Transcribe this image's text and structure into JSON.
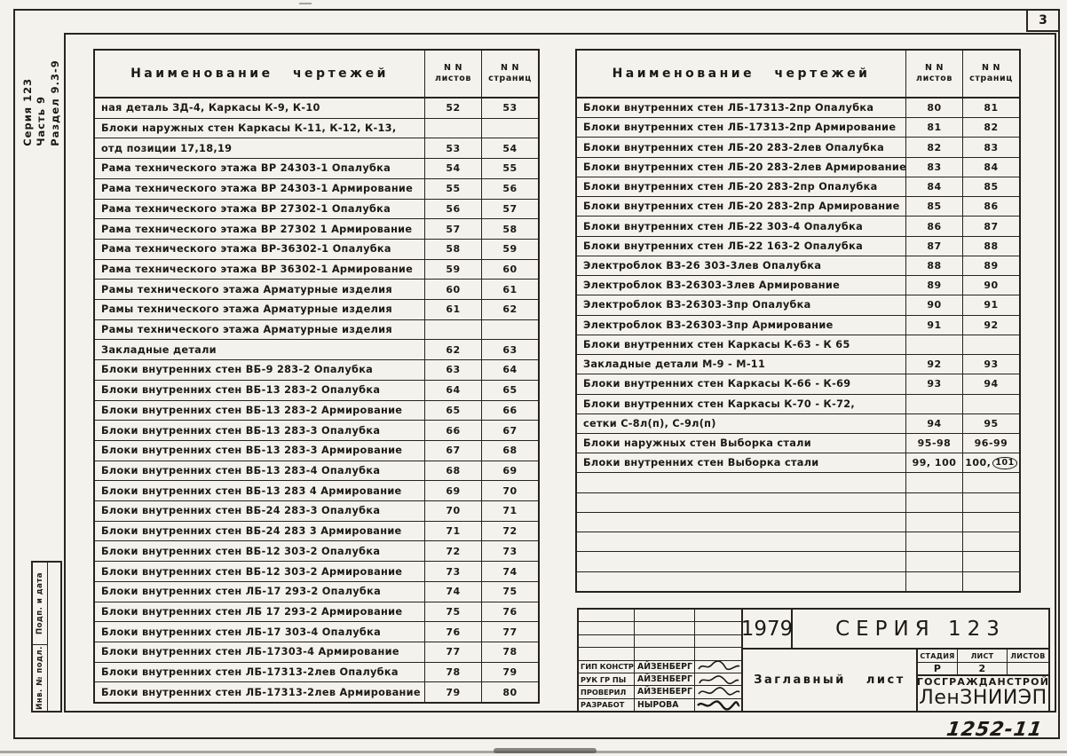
{
  "page": {
    "page_number": "3",
    "side_label": {
      "line1": "Серия 123",
      "line2": "Часть 9",
      "line3": "Раздел 9.3-9"
    },
    "margin_stamp": {
      "top_label": "Подп. и дата",
      "bottom_label": "Инв. № подл."
    },
    "doc_number": "1252-11"
  },
  "table_header": {
    "name": "Наименование чертежей",
    "sheets_line1": "N N",
    "sheets_line2": "листов",
    "pages_line1": "N N",
    "pages_line2": "страниц"
  },
  "left_table_rows": [
    {
      "name": "ная деталь ЗД-4, Каркасы К-9, К-10",
      "sheets": "52",
      "pages": "53"
    },
    {
      "name": "Блоки наружных стен Каркасы К-11, К-12, К-13,",
      "sheets": "",
      "pages": ""
    },
    {
      "name": "отд позиции 17,18,19",
      "sheets": "53",
      "pages": "54"
    },
    {
      "name": "Рама технического этажа ВР 24303-1 Опалубка",
      "sheets": "54",
      "pages": "55"
    },
    {
      "name": "Рама технического этажа ВР 24303-1 Армирование",
      "sheets": "55",
      "pages": "56"
    },
    {
      "name": "Рама технического этажа ВР 27302-1 Опалубка",
      "sheets": "56",
      "pages": "57"
    },
    {
      "name": "Рама технического этажа ВР 27302 1 Армирование",
      "sheets": "57",
      "pages": "58"
    },
    {
      "name": "Рама технического этажа ВР-36302-1 Опалубка",
      "sheets": "58",
      "pages": "59"
    },
    {
      "name": "Рама технического этажа ВР 36302-1 Армирование",
      "sheets": "59",
      "pages": "60"
    },
    {
      "name": "Рамы технического этажа Арматурные изделия",
      "sheets": "60",
      "pages": "61"
    },
    {
      "name": "Рамы технического этажа Арматурные изделия",
      "sheets": "61",
      "pages": "62"
    },
    {
      "name": "Рамы технического этажа Арматурные изделия",
      "sheets": "",
      "pages": ""
    },
    {
      "name": "Закладные детали",
      "sheets": "62",
      "pages": "63"
    },
    {
      "name": "Блоки внутренних стен ВБ-9 283-2 Опалубка",
      "sheets": "63",
      "pages": "64"
    },
    {
      "name": "Блоки внутренних стен ВБ-13 283-2 Опалубка",
      "sheets": "64",
      "pages": "65"
    },
    {
      "name": "Блоки внутренних стен ВБ-13 283-2 Армирование",
      "sheets": "65",
      "pages": "66"
    },
    {
      "name": "Блоки внутренних стен ВБ-13 283-3 Опалубка",
      "sheets": "66",
      "pages": "67"
    },
    {
      "name": "Блоки внутренних стен ВБ-13 283-3 Армирование",
      "sheets": "67",
      "pages": "68"
    },
    {
      "name": "Блоки внутренних стен ВБ-13 283-4 Опалубка",
      "sheets": "68",
      "pages": "69"
    },
    {
      "name": "Блоки внутренних стен ВБ-13 283 4 Армирование",
      "sheets": "69",
      "pages": "70"
    },
    {
      "name": "Блоки внутренних стен ВБ-24 283-3 Опалубка",
      "sheets": "70",
      "pages": "71"
    },
    {
      "name": "Блоки внутренних стен ВБ-24 283 3 Армирование",
      "sheets": "71",
      "pages": "72"
    },
    {
      "name": "Блоки внутренних стен ВБ-12 303-2 Опалубка",
      "sheets": "72",
      "pages": "73"
    },
    {
      "name": "Блоки внутренних стен ВБ-12 303-2 Армирование",
      "sheets": "73",
      "pages": "74"
    },
    {
      "name": "Блоки внутренних стен ЛБ-17 293-2 Опалубка",
      "sheets": "74",
      "pages": "75"
    },
    {
      "name": "Блоки внутренних стен ЛБ 17 293-2 Армирование",
      "sheets": "75",
      "pages": "76"
    },
    {
      "name": "Блоки внутренних стен ЛБ-17 303-4 Опалубка",
      "sheets": "76",
      "pages": "77"
    },
    {
      "name": "Блоки внутренних стен ЛБ-17303-4 Армирование",
      "sheets": "77",
      "pages": "78"
    },
    {
      "name": "Блоки внутренних стен ЛБ-17313-2лев Опалубка",
      "sheets": "78",
      "pages": "79"
    },
    {
      "name": "Блоки внутренних стен ЛБ-17313-2лев Армирование",
      "sheets": "79",
      "pages": "80"
    }
  ],
  "right_table_rows": [
    {
      "name": "Блоки внутренних стен ЛБ-17313-2пр Опалубка",
      "sheets": "80",
      "pages": "81"
    },
    {
      "name": "Блоки внутренних стен ЛБ-17313-2пр Армирование",
      "sheets": "81",
      "pages": "82"
    },
    {
      "name": "Блоки внутренних стен ЛБ-20 283-2лев Опалубка",
      "sheets": "82",
      "pages": "83"
    },
    {
      "name": "Блоки внутренних стен ЛБ-20 283-2лев Армирование",
      "sheets": "83",
      "pages": "84"
    },
    {
      "name": "Блоки внутренних стен ЛБ-20 283-2пр Опалубка",
      "sheets": "84",
      "pages": "85"
    },
    {
      "name": "Блоки внутренних стен ЛБ-20 283-2пр Армирование",
      "sheets": "85",
      "pages": "86"
    },
    {
      "name": "Блоки внутренних стен ЛБ-22 303-4 Опалубка",
      "sheets": "86",
      "pages": "87"
    },
    {
      "name": "Блоки внутренних стен ЛБ-22 163-2 Опалубка",
      "sheets": "87",
      "pages": "88"
    },
    {
      "name": "Электроблок ВЗ-26 303-3лев Опалубка",
      "sheets": "88",
      "pages": "89"
    },
    {
      "name": "Электроблок ВЗ-26303-3лев Армирование",
      "sheets": "89",
      "pages": "90"
    },
    {
      "name": "Электроблок ВЗ-26303-3пр Опалубка",
      "sheets": "90",
      "pages": "91"
    },
    {
      "name": "Электроблок ВЗ-26303-3пр Армирование",
      "sheets": "91",
      "pages": "92"
    },
    {
      "name": "Блоки внутренних стен Каркасы К-63 - К 65",
      "sheets": "",
      "pages": ""
    },
    {
      "name": "Закладные детали М-9 - М-11",
      "sheets": "92",
      "pages": "93"
    },
    {
      "name": "Блоки внутренних стен Каркасы К-66 - К-69",
      "sheets": "93",
      "pages": "94"
    },
    {
      "name": "Блоки внутренних стен Каркасы К-70 - К-72,",
      "sheets": "",
      "pages": ""
    },
    {
      "name": "сетки С-8л(п), С-9л(п)",
      "sheets": "94",
      "pages": "95"
    },
    {
      "name": "Блоки наружных стен Выборка стали",
      "sheets": "95-98",
      "pages": "96-99"
    },
    {
      "name": "Блоки внутренних стен Выборка стали",
      "sheets": "99, 100",
      "pages": "100,",
      "pages_circled": "101"
    },
    {
      "name": "",
      "sheets": "",
      "pages": ""
    },
    {
      "name": "",
      "sheets": "",
      "pages": ""
    },
    {
      "name": "",
      "sheets": "",
      "pages": ""
    },
    {
      "name": "",
      "sheets": "",
      "pages": ""
    },
    {
      "name": "",
      "sheets": "",
      "pages": ""
    },
    {
      "name": "",
      "sheets": "",
      "pages": ""
    }
  ],
  "title_block": {
    "year": "1979",
    "series": "СЕРИЯ 123",
    "doc_title": "Заглавный лист",
    "crew": [
      {
        "role": "ГИП констр.",
        "name": "Айзенберг"
      },
      {
        "role": "Рук гр пы",
        "name": "Айзенберг"
      },
      {
        "role": "Проверил",
        "name": "Айзенберг"
      },
      {
        "role": "Разработ",
        "name": "Нырова"
      }
    ],
    "stage_label": "Стадия",
    "sheet_label": "Лист",
    "sheets_label": "Листов",
    "stage_value": "Р",
    "sheet_value": "2",
    "sheets_value": "",
    "org_name": "Госгражданстрой",
    "org_institute": "ЛенЗНИИЭП"
  }
}
